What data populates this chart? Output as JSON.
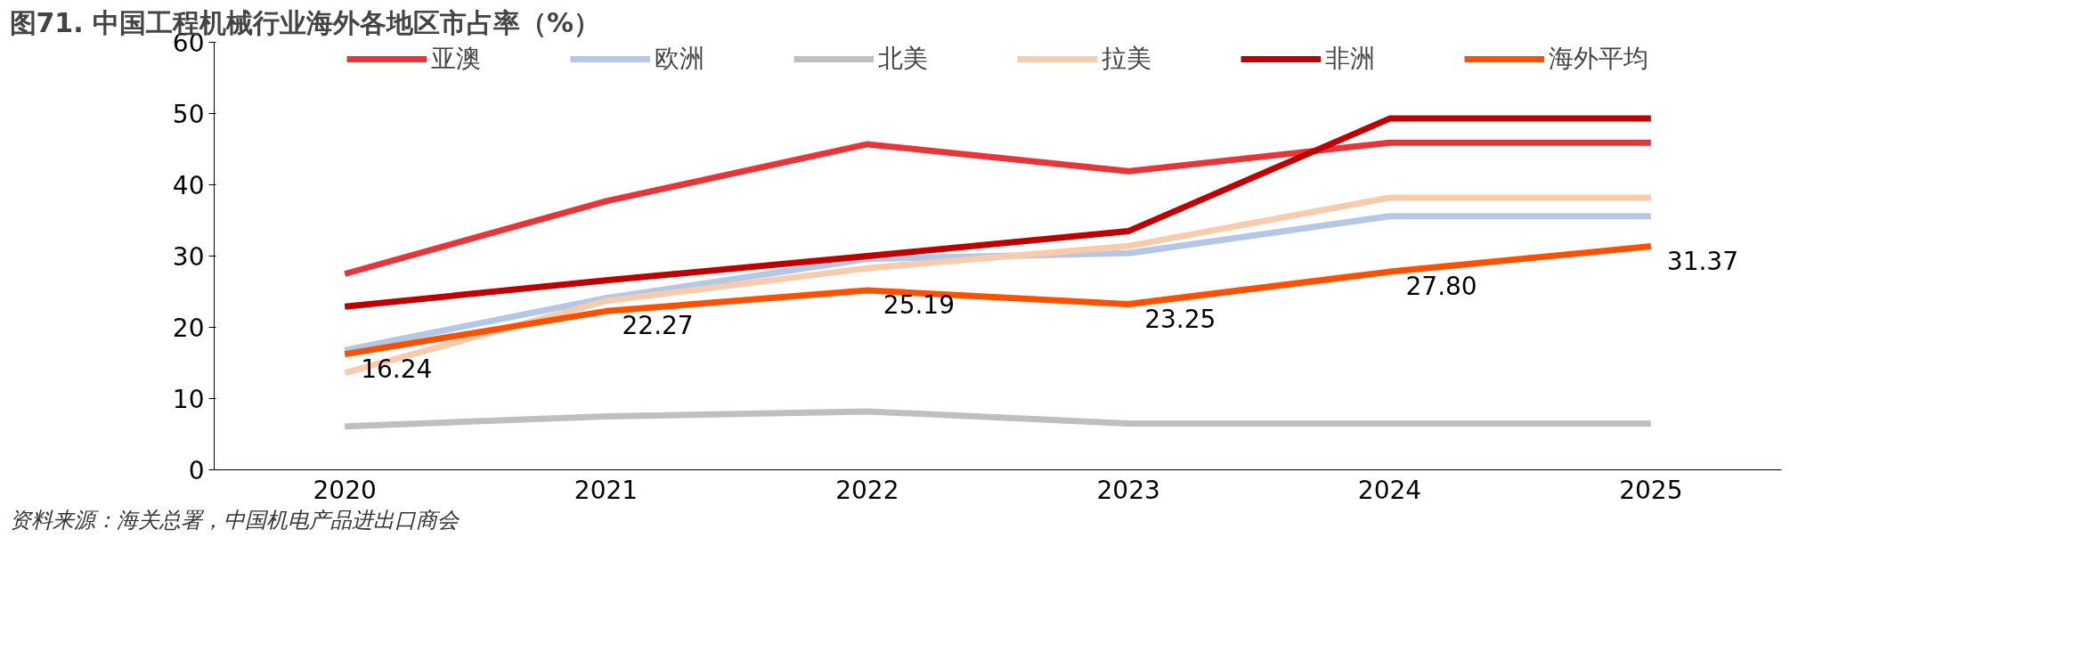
{
  "chart_data": {
    "type": "line",
    "title": "图71. 中国工程机械行业海外各地区市占率（%）",
    "categories": [
      "2020",
      "2021",
      "2022",
      "2023",
      "2024",
      "2025"
    ],
    "series": [
      {
        "name": "亚澳",
        "color": "#e8353a",
        "values": [
          27.5,
          37.7,
          45.7,
          41.9,
          45.9,
          45.9
        ]
      },
      {
        "name": "欧洲",
        "color": "#b4c7e7",
        "values": [
          16.8,
          24.1,
          29.6,
          30.4,
          35.6,
          35.6
        ]
      },
      {
        "name": "北美",
        "color": "#bfbfbf",
        "values": [
          6.1,
          7.5,
          8.2,
          6.5,
          6.5,
          6.5
        ]
      },
      {
        "name": "拉美",
        "color": "#f8cbad",
        "values": [
          13.6,
          23.7,
          28.3,
          31.4,
          38.2,
          38.2
        ]
      },
      {
        "name": "非洲",
        "color": "#c00000",
        "values": [
          22.9,
          26.6,
          30.0,
          33.5,
          49.3,
          49.3
        ]
      },
      {
        "name": "海外平均",
        "color": "#ff5000",
        "values": [
          16.24,
          22.27,
          25.19,
          23.25,
          27.8,
          31.37
        ],
        "value_labels": [
          "16.24",
          "22.27",
          "25.19",
          "23.25",
          "27.80",
          "31.37"
        ]
      }
    ],
    "ylim": [
      0,
      60
    ],
    "yticks": [
      0,
      10,
      20,
      30,
      40,
      50,
      60
    ],
    "grid": false,
    "legend": "top",
    "marker": "none",
    "line_style": "solid",
    "annotations": [
      "资料来源：海关总署，中国机电产品进出口商会"
    ]
  }
}
